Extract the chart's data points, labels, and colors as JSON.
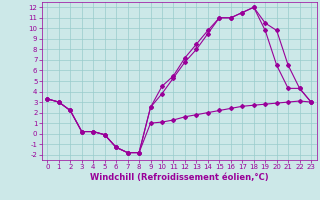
{
  "background_color": "#cce8e8",
  "grid_color": "#99cccc",
  "line_color": "#990099",
  "marker": "D",
  "markersize": 2.0,
  "linewidth": 0.8,
  "xlabel": "Windchill (Refroidissement éolien,°C)",
  "xlabel_fontsize": 6,
  "tick_fontsize": 5,
  "xlim": [
    -0.5,
    23.5
  ],
  "ylim": [
    -2.5,
    12.5
  ],
  "xticks": [
    0,
    1,
    2,
    3,
    4,
    5,
    6,
    7,
    8,
    9,
    10,
    11,
    12,
    13,
    14,
    15,
    16,
    17,
    18,
    19,
    20,
    21,
    22,
    23
  ],
  "yticks": [
    -2,
    -1,
    0,
    1,
    2,
    3,
    4,
    5,
    6,
    7,
    8,
    9,
    10,
    11,
    12
  ],
  "line1_x": [
    0,
    1,
    2,
    3,
    4,
    5,
    6,
    7,
    8,
    9,
    10,
    11,
    12,
    13,
    14,
    15,
    16,
    17,
    18,
    19,
    20,
    21,
    22,
    23
  ],
  "line1_y": [
    3.3,
    3.0,
    2.2,
    0.2,
    0.2,
    -0.1,
    -1.3,
    -1.8,
    -1.8,
    1.0,
    1.1,
    1.3,
    1.6,
    1.8,
    2.0,
    2.2,
    2.4,
    2.6,
    2.7,
    2.8,
    2.9,
    3.0,
    3.1,
    3.0
  ],
  "line2_x": [
    0,
    1,
    2,
    3,
    4,
    5,
    6,
    7,
    8,
    9,
    10,
    11,
    12,
    13,
    14,
    15,
    16,
    17,
    18,
    19,
    20,
    21,
    22,
    23
  ],
  "line2_y": [
    3.3,
    3.0,
    2.2,
    0.2,
    0.2,
    -0.1,
    -1.3,
    -1.8,
    -1.8,
    2.5,
    3.8,
    5.3,
    6.8,
    8.0,
    9.5,
    11.0,
    11.0,
    11.5,
    12.0,
    10.5,
    9.8,
    6.5,
    4.3,
    3.0
  ],
  "line3_x": [
    0,
    1,
    2,
    3,
    4,
    5,
    6,
    7,
    8,
    9,
    10,
    11,
    12,
    13,
    14,
    15,
    16,
    17,
    18,
    19,
    20,
    21,
    22,
    23
  ],
  "line3_y": [
    3.3,
    3.0,
    2.2,
    0.2,
    0.2,
    -0.1,
    -1.3,
    -1.8,
    -1.8,
    2.5,
    4.5,
    5.5,
    7.2,
    8.5,
    9.8,
    11.0,
    11.0,
    11.5,
    12.0,
    9.8,
    6.5,
    4.3,
    4.3,
    3.0
  ]
}
